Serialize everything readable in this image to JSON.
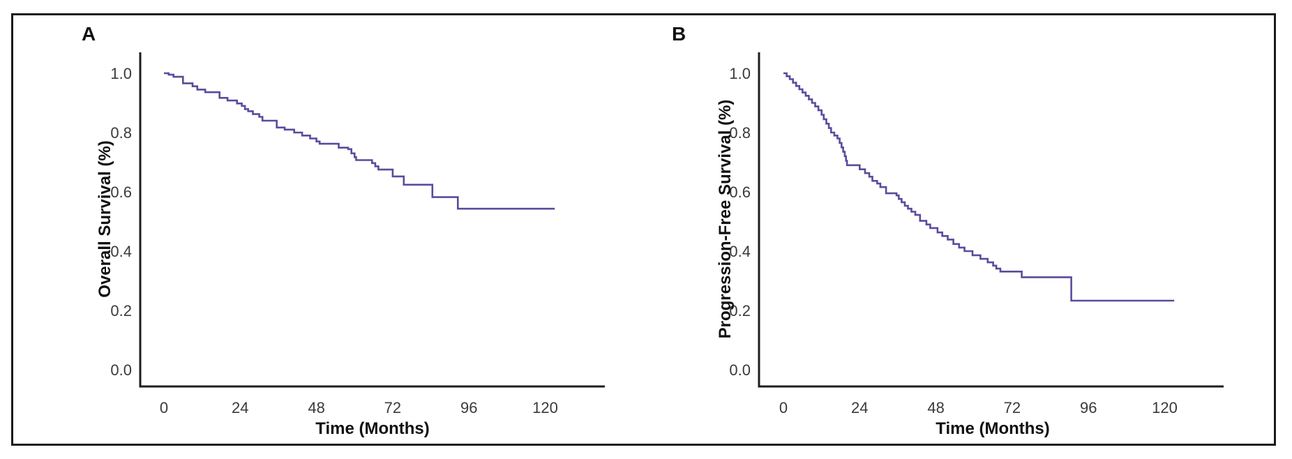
{
  "figure": {
    "background": "#ffffff",
    "border_color": "#1a1a1a",
    "axis_color": "#1e1e1e",
    "tick_label_color": "#3a3a3a",
    "curve_color": "#5C4A9C"
  },
  "chart_data": [
    {
      "panel_label": "A",
      "type": "line",
      "subtype": "kaplan-meier-step",
      "title": "",
      "ylabel": "Overall Survival (%)",
      "xlabel": "Time (Months)",
      "x_ticks": [
        0,
        24,
        48,
        72,
        96,
        120
      ],
      "y_ticks": [
        "1.0",
        "0.8",
        "0.6",
        "0.4",
        "0.2",
        "0.0"
      ],
      "xlim": [
        0,
        138
      ],
      "ylim": [
        0.0,
        1.0
      ],
      "grid": false,
      "legend_position": "none",
      "points": [
        [
          0,
          1.0
        ],
        [
          1.5,
          0.995
        ],
        [
          3,
          0.988
        ],
        [
          6,
          0.966
        ],
        [
          9,
          0.956
        ],
        [
          10.5,
          0.945
        ],
        [
          13,
          0.936
        ],
        [
          17.5,
          0.917
        ],
        [
          20,
          0.908
        ],
        [
          23,
          0.898
        ],
        [
          24.5,
          0.89
        ],
        [
          25.5,
          0.879
        ],
        [
          26.5,
          0.872
        ],
        [
          28,
          0.862
        ],
        [
          30,
          0.853
        ],
        [
          31,
          0.84
        ],
        [
          35.5,
          0.817
        ],
        [
          38,
          0.81
        ],
        [
          41,
          0.8
        ],
        [
          43.5,
          0.79
        ],
        [
          46,
          0.78
        ],
        [
          48,
          0.77
        ],
        [
          49,
          0.762
        ],
        [
          55,
          0.749
        ],
        [
          58,
          0.744
        ],
        [
          59,
          0.73
        ],
        [
          60,
          0.717
        ],
        [
          60.5,
          0.707
        ],
        [
          65.5,
          0.697
        ],
        [
          66.5,
          0.686
        ],
        [
          67.5,
          0.675
        ],
        [
          72,
          0.652
        ],
        [
          75.5,
          0.624
        ],
        [
          84.5,
          0.582
        ],
        [
          92.5,
          0.543
        ]
      ],
      "end_month": 123
    },
    {
      "panel_label": "B",
      "type": "line",
      "subtype": "kaplan-meier-step",
      "title": "",
      "ylabel": "Progression-Free Survival (%)",
      "xlabel": "Time (Months)",
      "x_ticks": [
        0,
        24,
        48,
        72,
        96,
        120
      ],
      "y_ticks": [
        "1.0",
        "0.8",
        "0.6",
        "0.4",
        "0.2",
        "0.0"
      ],
      "xlim": [
        0,
        138
      ],
      "ylim": [
        0.0,
        1.0
      ],
      "grid": false,
      "legend_position": "none",
      "points": [
        [
          0,
          1.0
        ],
        [
          1,
          0.99
        ],
        [
          2,
          0.98
        ],
        [
          3,
          0.968
        ],
        [
          4,
          0.957
        ],
        [
          5,
          0.946
        ],
        [
          6,
          0.935
        ],
        [
          7,
          0.924
        ],
        [
          8,
          0.912
        ],
        [
          9,
          0.9
        ],
        [
          10,
          0.888
        ],
        [
          11,
          0.875
        ],
        [
          12,
          0.86
        ],
        [
          12.7,
          0.845
        ],
        [
          13.5,
          0.83
        ],
        [
          14.3,
          0.815
        ],
        [
          15,
          0.8
        ],
        [
          16,
          0.79
        ],
        [
          17,
          0.78
        ],
        [
          17.7,
          0.765
        ],
        [
          18.3,
          0.75
        ],
        [
          18.8,
          0.735
        ],
        [
          19.3,
          0.72
        ],
        [
          19.7,
          0.705
        ],
        [
          20,
          0.69
        ],
        [
          24,
          0.676
        ],
        [
          25.7,
          0.663
        ],
        [
          27,
          0.651
        ],
        [
          28,
          0.637
        ],
        [
          29.5,
          0.628
        ],
        [
          30.5,
          0.616
        ],
        [
          32.3,
          0.595
        ],
        [
          35.6,
          0.588
        ],
        [
          36.3,
          0.576
        ],
        [
          37.2,
          0.565
        ],
        [
          38.2,
          0.553
        ],
        [
          39.2,
          0.543
        ],
        [
          40.3,
          0.533
        ],
        [
          41.5,
          0.522
        ],
        [
          43,
          0.502
        ],
        [
          45,
          0.49
        ],
        [
          46.2,
          0.478
        ],
        [
          48.5,
          0.463
        ],
        [
          50,
          0.451
        ],
        [
          51.7,
          0.439
        ],
        [
          53.5,
          0.424
        ],
        [
          55.3,
          0.412
        ],
        [
          57,
          0.4
        ],
        [
          59.5,
          0.386
        ],
        [
          62,
          0.374
        ],
        [
          64.3,
          0.362
        ],
        [
          66,
          0.351
        ],
        [
          67,
          0.341
        ],
        [
          68.3,
          0.331
        ],
        [
          75,
          0.312
        ],
        [
          90.6,
          0.233
        ]
      ],
      "end_month": 123
    }
  ]
}
